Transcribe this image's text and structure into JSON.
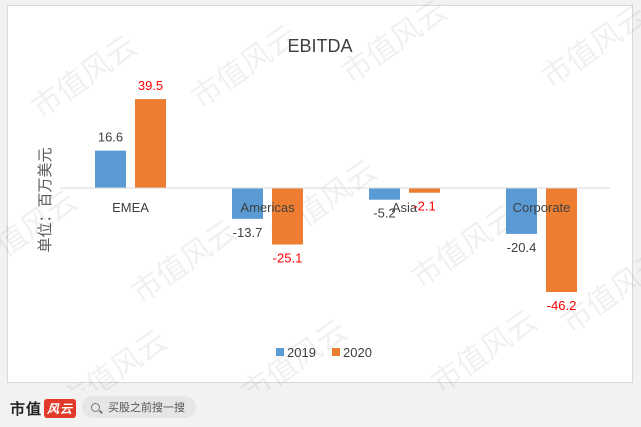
{
  "chart_data": {
    "type": "bar",
    "title": "EBITDA",
    "ylabel": "单位：百万美元",
    "categories": [
      "EMEA",
      "Americas",
      "Asia",
      "Corporate"
    ],
    "series": [
      {
        "name": "2019",
        "values": [
          16.6,
          -13.7,
          -5.2,
          -20.4
        ],
        "color": "#5b9bd5",
        "label_color": "#404040"
      },
      {
        "name": "2020",
        "values": [
          39.5,
          -25.1,
          -2.1,
          -46.2
        ],
        "color": "#ed7d31",
        "label_color": "#ff0000"
      }
    ],
    "ylim": [
      -50,
      45
    ],
    "grid": false,
    "legend": "bottom"
  },
  "watermark": "市值风云",
  "footer": {
    "brand": "市值",
    "brand_mark": "风云",
    "search_text": "买股之前搜一搜"
  }
}
